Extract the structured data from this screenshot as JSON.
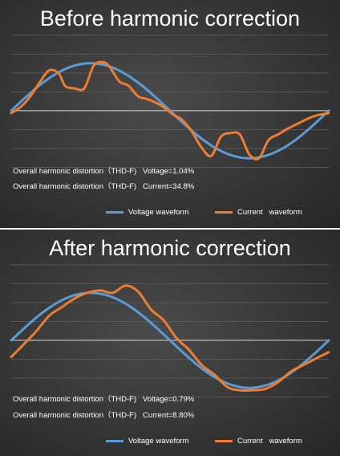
{
  "chart_data": [
    {
      "type": "line",
      "title": "Before harmonic correction",
      "xlim": [
        0,
        1
      ],
      "ylim": [
        -1.25,
        1.45
      ],
      "grid": true,
      "legend": "bottom",
      "annotations": [
        "Overall harmonic distortion（THD-F)   Voltage=1.04%",
        "Overall harmonic distortion（THD-F)   Current=34.8%"
      ],
      "series": [
        {
          "name": "Voltage waveform",
          "color": "#5b9bd5",
          "x": [
            0,
            0.05,
            0.1,
            0.15,
            0.2,
            0.25,
            0.3,
            0.35,
            0.4,
            0.45,
            0.5,
            0.55,
            0.6,
            0.65,
            0.7,
            0.75,
            0.8,
            0.85,
            0.9,
            0.95,
            1.0
          ],
          "y": [
            0,
            0.31,
            0.59,
            0.81,
            0.95,
            1.0,
            0.95,
            0.81,
            0.59,
            0.31,
            0,
            -0.31,
            -0.59,
            -0.81,
            -0.95,
            -1.0,
            -0.95,
            -0.81,
            -0.59,
            -0.31,
            0
          ]
        },
        {
          "name": "Current   waveform",
          "color": "#ed7d31",
          "x": [
            0,
            0.03,
            0.06,
            0.09,
            0.12,
            0.15,
            0.17,
            0.2,
            0.23,
            0.26,
            0.29,
            0.31,
            0.34,
            0.37,
            0.4,
            0.43,
            0.47,
            0.51,
            0.54,
            0.57,
            0.6,
            0.63,
            0.66,
            0.69,
            0.72,
            0.75,
            0.78,
            0.81,
            0.84,
            0.87,
            0.9,
            0.93,
            0.96,
            1.0
          ],
          "y": [
            -0.05,
            0.08,
            0.3,
            0.6,
            0.85,
            0.78,
            0.52,
            0.47,
            0.47,
            0.95,
            1.02,
            0.92,
            0.62,
            0.52,
            0.3,
            0.24,
            0.12,
            -0.08,
            -0.2,
            -0.45,
            -0.78,
            -0.95,
            -0.55,
            -0.47,
            -0.5,
            -0.92,
            -1.0,
            -0.62,
            -0.5,
            -0.38,
            -0.28,
            -0.18,
            -0.1,
            -0.05
          ]
        }
      ]
    },
    {
      "type": "line",
      "title": "After harmonic correction",
      "xlim": [
        0,
        1
      ],
      "ylim": [
        -1.25,
        1.45
      ],
      "grid": true,
      "legend": "bottom",
      "annotations": [
        "Overall harmonic distortion（THD-F)   Voltage=0.79%",
        "Overall harmonic distortion（THD-F)   Current=8.80%"
      ],
      "series": [
        {
          "name": "Voltage waveform",
          "color": "#5b9bd5",
          "x": [
            0,
            0.05,
            0.1,
            0.15,
            0.2,
            0.25,
            0.3,
            0.35,
            0.4,
            0.45,
            0.5,
            0.55,
            0.6,
            0.65,
            0.7,
            0.75,
            0.8,
            0.85,
            0.9,
            0.95,
            1.0
          ],
          "y": [
            0,
            0.31,
            0.59,
            0.81,
            0.95,
            1.0,
            0.95,
            0.81,
            0.59,
            0.31,
            0,
            -0.31,
            -0.59,
            -0.81,
            -0.95,
            -1.0,
            -0.95,
            -0.81,
            -0.59,
            -0.31,
            0
          ]
        },
        {
          "name": "Current   waveform",
          "color": "#ed7d31",
          "x": [
            0,
            0.04,
            0.08,
            0.12,
            0.16,
            0.2,
            0.24,
            0.28,
            0.32,
            0.36,
            0.4,
            0.44,
            0.48,
            0.52,
            0.56,
            0.6,
            0.64,
            0.68,
            0.72,
            0.76,
            0.8,
            0.84,
            0.88,
            0.92,
            0.96,
            1.0
          ],
          "y": [
            -0.35,
            -0.08,
            0.2,
            0.52,
            0.7,
            0.88,
            1.0,
            1.05,
            1.0,
            1.15,
            1.02,
            0.65,
            0.42,
            0.05,
            -0.2,
            -0.52,
            -0.72,
            -0.98,
            -1.05,
            -1.05,
            -1.02,
            -0.88,
            -0.66,
            -0.52,
            -0.38,
            -0.25
          ]
        }
      ]
    }
  ]
}
